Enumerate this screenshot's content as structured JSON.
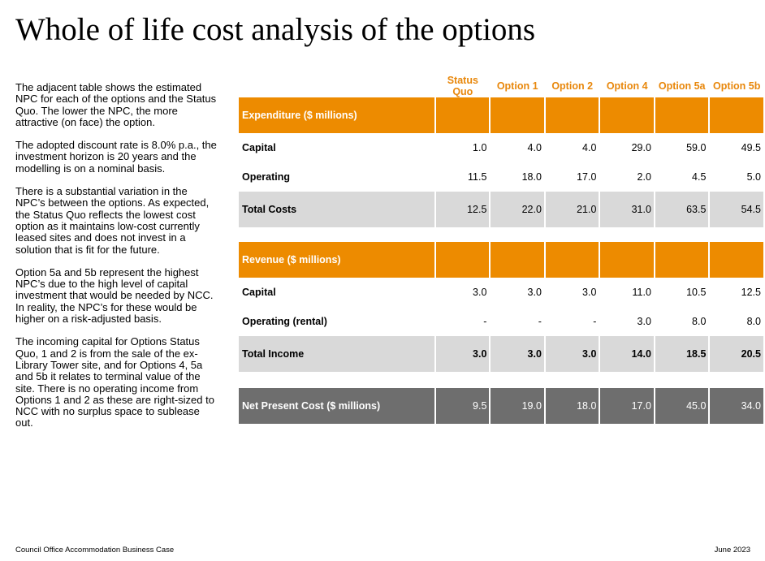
{
  "title": "Whole of life cost analysis of the options",
  "paragraphs": [
    "The adjacent table shows the estimated NPC for each of the options and the Status Quo. The lower the NPC, the more attractive (on face) the option.",
    "The adopted discount rate is 8.0% p.a., the investment horizon is 20 years and the modelling is on a nominal basis.",
    "There is a substantial variation in the NPC’s between the options. As expected, the Status Quo reflects the lowest cost option as it maintains low-cost currently leased sites and does not invest in a solution that is fit for the future.",
    "Option 5a and 5b represent the highest NPC’s due to the high level of capital investment that would be needed by NCC. In reality, the NPC’s for these would be higher on a risk-adjusted basis.",
    "The incoming capital for Options Status Quo, 1 and 2 is from the sale of the ex-Library Tower site, and for Options 4, 5a and 5b it relates to terminal value of the site. There is no operating income from Options 1 and 2 as these are right-sized to NCC with no surplus space to sublease out."
  ],
  "table": {
    "columns": [
      "Status Quo",
      "Option 1",
      "Option 2",
      "Option 4",
      "Option 5a",
      "Option 5b"
    ],
    "expenditure_label": "Expenditure ($ millions)",
    "expenditure_rows": [
      {
        "label": "Capital",
        "values": [
          "1.0",
          "4.0",
          "4.0",
          "29.0",
          "59.0",
          "49.5"
        ]
      },
      {
        "label": "Operating",
        "values": [
          "11.5",
          "18.0",
          "17.0",
          "2.0",
          "4.5",
          "5.0"
        ]
      }
    ],
    "total_costs": {
      "label": "Total Costs",
      "values": [
        "12.5",
        "22.0",
        "21.0",
        "31.0",
        "63.5",
        "54.5"
      ]
    },
    "revenue_label": "Revenue ($ millions)",
    "revenue_rows": [
      {
        "label": "Capital",
        "values": [
          "3.0",
          "3.0",
          "3.0",
          "11.0",
          "10.5",
          "12.5"
        ]
      },
      {
        "label": "Operating (rental)",
        "values": [
          "-",
          "-",
          "-",
          "3.0",
          "8.0",
          "8.0"
        ]
      }
    ],
    "total_income": {
      "label": "Total Income",
      "values": [
        "3.0",
        "3.0",
        "3.0",
        "14.0",
        "18.5",
        "20.5"
      ]
    },
    "npc": {
      "label": "Net Present Cost ($ millions)",
      "values": [
        "9.5",
        "19.0",
        "18.0",
        "17.0",
        "45.0",
        "34.0"
      ]
    }
  },
  "footer": {
    "left": "Council Office Accommodation Business Case",
    "right": "June 2023"
  },
  "colors": {
    "orange": "#ed8b00",
    "grey": "#d9d9d9",
    "dark_grey": "#6e6e6e"
  }
}
